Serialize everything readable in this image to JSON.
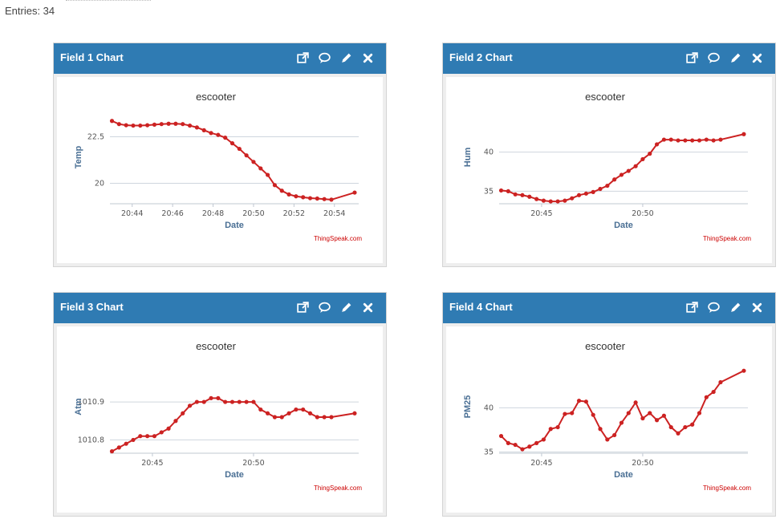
{
  "header": {
    "entries_text": "Entries: 34"
  },
  "panels": [
    {
      "title": "Field 1 Chart",
      "icon_names": [
        "external-link-icon",
        "comment-icon",
        "pencil-icon",
        "close-icon"
      ],
      "chart_data": {
        "type": "line",
        "title": "escooter",
        "xlabel": "Date",
        "ylabel": "Temp",
        "credit": "ThingSpeak.com",
        "x_ticks": [
          "20:44",
          "20:46",
          "20:48",
          "20:50",
          "20:52",
          "20:54"
        ],
        "x_tick_minutes": [
          44,
          46,
          48,
          50,
          52,
          54
        ],
        "xlim_minutes": [
          42.9,
          55.2
        ],
        "y_ticks": [
          20,
          22.5
        ],
        "y_tick_labels": [
          "20",
          "22.5"
        ],
        "ylim": [
          18.9,
          23.9
        ],
        "grid": true,
        "color": "#cc2222",
        "series": [
          {
            "x_minutes": [
              43.0,
              43.35,
              43.7,
              44.05,
              44.4,
              44.75,
              45.1,
              45.45,
              45.8,
              46.15,
              46.5,
              46.85,
              47.2,
              47.55,
              47.9,
              48.25,
              48.6,
              48.95,
              49.3,
              49.65,
              50.0,
              50.35,
              50.7,
              51.05,
              51.4,
              51.75,
              52.1,
              52.45,
              52.8,
              53.15,
              53.5,
              53.85,
              55.0
            ],
            "values": [
              23.35,
              23.18,
              23.12,
              23.1,
              23.1,
              23.12,
              23.15,
              23.18,
              23.2,
              23.2,
              23.18,
              23.1,
              23.0,
              22.85,
              22.7,
              22.6,
              22.45,
              22.15,
              21.85,
              21.5,
              21.15,
              20.8,
              20.45,
              19.9,
              19.6,
              19.4,
              19.3,
              19.25,
              19.2,
              19.18,
              19.15,
              19.12,
              19.5
            ]
          }
        ]
      }
    },
    {
      "title": "Field 2 Chart",
      "icon_names": [
        "external-link-icon",
        "comment-icon",
        "pencil-icon",
        "close-icon"
      ],
      "chart_data": {
        "type": "line",
        "title": "escooter",
        "xlabel": "Date",
        "ylabel": "Hum",
        "credit": "ThingSpeak.com",
        "x_ticks": [
          "20:45",
          "20:50"
        ],
        "x_tick_minutes": [
          45,
          50
        ],
        "xlim_minutes": [
          42.9,
          55.2
        ],
        "y_ticks": [
          35,
          40
        ],
        "y_tick_labels": [
          "35",
          "40"
        ],
        "ylim": [
          33.4,
          45.3
        ],
        "grid": true,
        "color": "#cc2222",
        "series": [
          {
            "x_minutes": [
              43.0,
              43.35,
              43.7,
              44.05,
              44.4,
              44.75,
              45.1,
              45.45,
              45.8,
              46.15,
              46.5,
              46.85,
              47.2,
              47.55,
              47.9,
              48.25,
              48.6,
              48.95,
              49.3,
              49.65,
              50.0,
              50.35,
              50.7,
              51.05,
              51.4,
              51.75,
              52.1,
              52.45,
              52.8,
              53.15,
              53.5,
              53.85,
              55.0
            ],
            "values": [
              35.1,
              35.0,
              34.6,
              34.5,
              34.3,
              34.0,
              33.8,
              33.7,
              33.7,
              33.8,
              34.1,
              34.5,
              34.7,
              34.9,
              35.3,
              35.7,
              36.5,
              37.1,
              37.6,
              38.2,
              39.1,
              39.8,
              41.0,
              41.6,
              41.6,
              41.5,
              41.5,
              41.5,
              41.5,
              41.6,
              41.5,
              41.6,
              42.3
            ]
          }
        ]
      }
    },
    {
      "title": "Field 3 Chart",
      "icon_names": [
        "external-link-icon",
        "comment-icon",
        "pencil-icon",
        "close-icon"
      ],
      "chart_data": {
        "type": "line",
        "title": "escooter",
        "xlabel": "Date",
        "ylabel": "Atm",
        "credit": "ThingSpeak.com",
        "x_ticks": [
          "20:45",
          "20:50"
        ],
        "x_tick_minutes": [
          45,
          50
        ],
        "xlim_minutes": [
          42.9,
          55.2
        ],
        "y_ticks": [
          1010.8,
          1010.9
        ],
        "y_tick_labels": [
          "1010.8",
          "1010.9"
        ],
        "ylim": [
          1010.765,
          1011.01
        ],
        "grid": true,
        "color": "#cc2222",
        "series": [
          {
            "x_minutes": [
              43.0,
              43.35,
              43.7,
              44.05,
              44.4,
              44.75,
              45.1,
              45.45,
              45.8,
              46.15,
              46.5,
              46.85,
              47.2,
              47.55,
              47.9,
              48.25,
              48.6,
              48.95,
              49.3,
              49.65,
              50.0,
              50.35,
              50.7,
              51.05,
              51.4,
              51.75,
              52.1,
              52.45,
              52.8,
              53.15,
              53.5,
              53.85,
              55.0
            ],
            "values": [
              1010.77,
              1010.78,
              1010.79,
              1010.8,
              1010.81,
              1010.81,
              1010.81,
              1010.82,
              1010.83,
              1010.85,
              1010.87,
              1010.89,
              1010.9,
              1010.9,
              1010.91,
              1010.91,
              1010.9,
              1010.9,
              1010.9,
              1010.9,
              1010.9,
              1010.88,
              1010.87,
              1010.86,
              1010.86,
              1010.87,
              1010.88,
              1010.88,
              1010.87,
              1010.86,
              1010.86,
              1010.86,
              1010.87
            ]
          }
        ]
      }
    },
    {
      "title": "Field 4 Chart",
      "icon_names": [
        "external-link-icon",
        "comment-icon",
        "pencil-icon",
        "close-icon"
      ],
      "chart_data": {
        "type": "line",
        "title": "escooter",
        "xlabel": "Date",
        "ylabel": "PM25",
        "credit": "ThingSpeak.com",
        "x_ticks": [
          "20:45",
          "20:50"
        ],
        "x_tick_minutes": [
          45,
          50
        ],
        "xlim_minutes": [
          42.9,
          55.2
        ],
        "y_ticks": [
          35,
          40
        ],
        "y_tick_labels": [
          "35",
          "40"
        ],
        "ylim": [
          34.85,
          45.4
        ],
        "grid": true,
        "color": "#cc2222",
        "series": [
          {
            "x_minutes": [
              43.0,
              43.35,
              43.7,
              44.05,
              44.4,
              44.75,
              45.1,
              45.45,
              45.8,
              46.15,
              46.5,
              46.85,
              47.2,
              47.55,
              47.9,
              48.25,
              48.6,
              48.95,
              49.3,
              49.65,
              50.0,
              50.35,
              50.7,
              51.05,
              51.4,
              51.75,
              52.1,
              52.45,
              52.8,
              53.15,
              53.5,
              53.85,
              55.0
            ],
            "values": [
              36.8,
              36.0,
              35.8,
              35.3,
              35.6,
              36.0,
              36.4,
              37.6,
              37.8,
              39.3,
              39.4,
              40.8,
              40.7,
              39.2,
              37.6,
              36.4,
              36.9,
              38.3,
              39.4,
              40.6,
              38.8,
              39.4,
              38.6,
              39.1,
              37.8,
              37.1,
              37.8,
              38.1,
              39.4,
              41.2,
              41.8,
              42.9,
              44.2
            ]
          }
        ]
      }
    }
  ]
}
